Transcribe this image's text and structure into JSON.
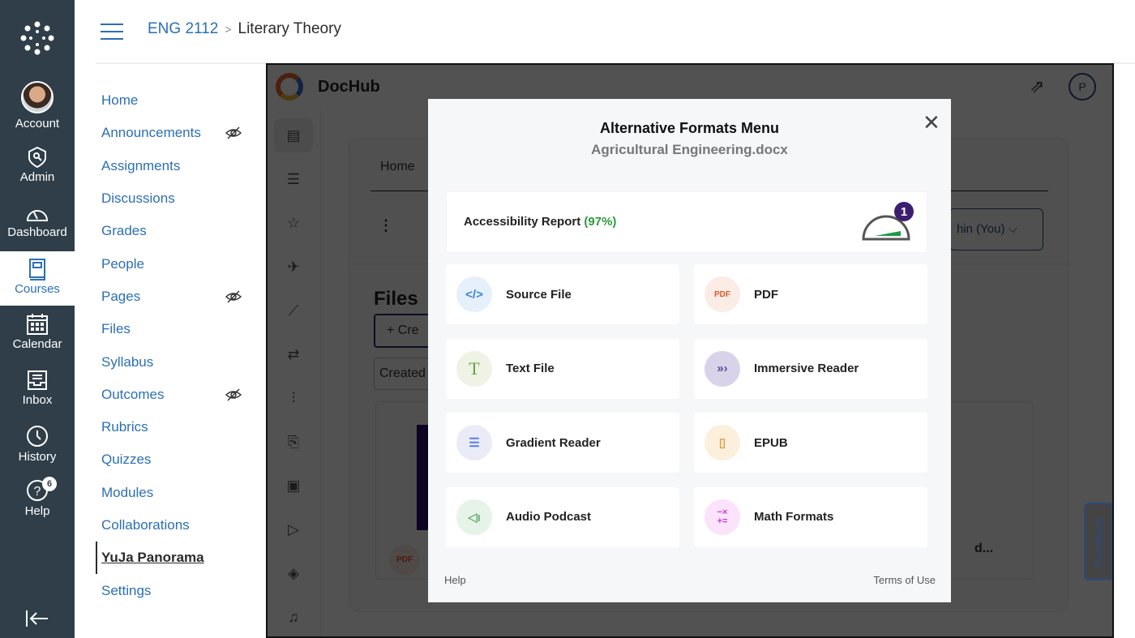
{
  "global_nav": [
    {
      "label": "Account",
      "icon": "avatar"
    },
    {
      "label": "Admin",
      "icon": "shield-key-icon"
    },
    {
      "label": "Dashboard",
      "icon": "speedometer-icon"
    },
    {
      "label": "Courses",
      "icon": "book-icon",
      "active": true
    },
    {
      "label": "Calendar",
      "icon": "calendar-icon"
    },
    {
      "label": "Inbox",
      "icon": "inbox-icon"
    },
    {
      "label": "History",
      "icon": "clock-icon"
    },
    {
      "label": "Help",
      "icon": "help-icon",
      "badge": "6"
    }
  ],
  "breadcrumb": {
    "course": "ENG 2112",
    "page": "Literary Theory"
  },
  "course_nav": [
    {
      "label": "Home"
    },
    {
      "label": "Announcements",
      "hidden": true
    },
    {
      "label": "Assignments"
    },
    {
      "label": "Discussions"
    },
    {
      "label": "Grades"
    },
    {
      "label": "People"
    },
    {
      "label": "Pages",
      "hidden": true
    },
    {
      "label": "Files"
    },
    {
      "label": "Syllabus"
    },
    {
      "label": "Outcomes",
      "hidden": true
    },
    {
      "label": "Rubrics"
    },
    {
      "label": "Quizzes"
    },
    {
      "label": "Modules"
    },
    {
      "label": "Collaborations"
    },
    {
      "label": "YuJa Panorama",
      "active": true
    },
    {
      "label": "Settings"
    }
  ],
  "dochub": {
    "app_name": "DocHub",
    "avatar_initial": "P",
    "tab_home": "Home",
    "files_title": "Files",
    "create_label": "Cre",
    "created_label": "Created",
    "owner_label": "hin (You)",
    "file_name_tail": "d...",
    "feedback": "Feedback"
  },
  "modal": {
    "title": "Alternative Formats Menu",
    "filename": "Agricultural Engineering.docx",
    "report_label": "Accessibility Report",
    "report_score": "(97%)",
    "report_badge": "1",
    "options": [
      {
        "label": "Source File",
        "icon": "source-code-icon",
        "color": "#3a86d8",
        "bg": "#e6f0fb"
      },
      {
        "label": "PDF",
        "icon": "pdf-icon",
        "color": "#e0562a",
        "bg": "#fbece6"
      },
      {
        "label": "Text File",
        "icon": "text-icon",
        "color": "#6aa23a",
        "bg": "#eff3e6"
      },
      {
        "label": "Immersive Reader",
        "icon": "chevrons-icon",
        "color": "#5a4a9a",
        "bg": "#d9d3ea"
      },
      {
        "label": "Gradient Reader",
        "icon": "lines-icon",
        "color": "#5a7de0",
        "bg": "#e9ecf7"
      },
      {
        "label": "EPUB",
        "icon": "book-icon",
        "color": "#e0a04a",
        "bg": "#fcefdc"
      },
      {
        "label": "Audio Podcast",
        "icon": "speaker-icon",
        "color": "#6fb07a",
        "bg": "#e6f3e9"
      },
      {
        "label": "Math Formats",
        "icon": "math-icon",
        "color": "#c93ad0",
        "bg": "#fbe3fb"
      }
    ],
    "help": "Help",
    "terms": "Terms of Use"
  }
}
